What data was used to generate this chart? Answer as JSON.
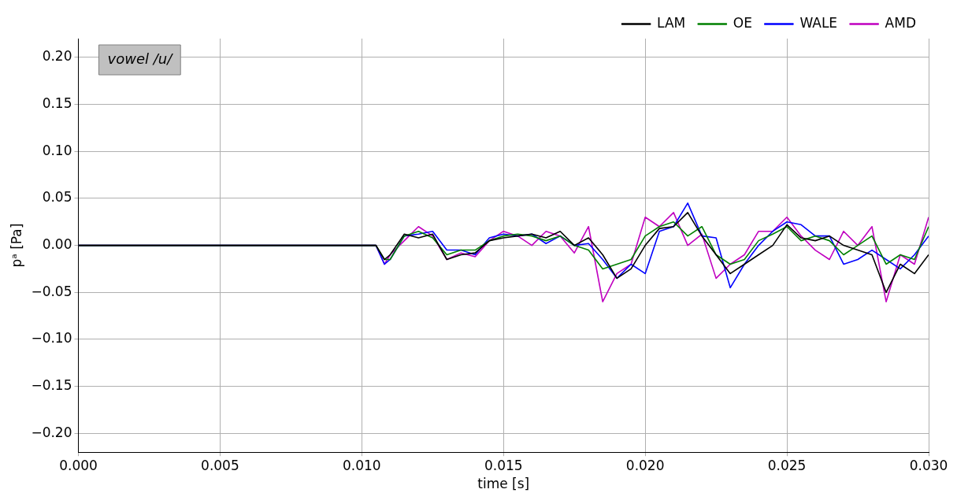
{
  "chart_data": {
    "type": "line",
    "xlabel": "time [s]",
    "ylabel": "pᵃ [Pa]",
    "annotations": [
      "vowel /u/"
    ],
    "legend": "top right",
    "grid": true,
    "marker": "none",
    "line_style": "solid",
    "x": [
      0,
      0.0105,
      0.0108,
      0.011,
      0.0115,
      0.012,
      0.0125,
      0.013,
      0.0135,
      0.014,
      0.0145,
      0.015,
      0.0155,
      0.016,
      0.0165,
      0.017,
      0.0175,
      0.018,
      0.0185,
      0.019,
      0.0195,
      0.02,
      0.0205,
      0.021,
      0.0215,
      0.022,
      0.0225,
      0.023,
      0.0235,
      0.024,
      0.0245,
      0.025,
      0.0255,
      0.026,
      0.0265,
      0.027,
      0.0275,
      0.028,
      0.0285,
      0.029,
      0.0295,
      0.03
    ],
    "xlim": [
      0,
      0.03
    ],
    "xticks": [
      {
        "value": 0,
        "label": "0.000"
      },
      {
        "value": 0.005,
        "label": "0.005"
      },
      {
        "value": 0.01,
        "label": "0.010"
      },
      {
        "value": 0.015,
        "label": "0.015"
      },
      {
        "value": 0.02,
        "label": "0.020"
      },
      {
        "value": 0.025,
        "label": "0.025"
      },
      {
        "value": 0.03,
        "label": "0.030"
      }
    ],
    "ylim": [
      -0.22,
      0.22
    ],
    "yticks": [
      {
        "value": -0.2,
        "label": "−0.20"
      },
      {
        "value": -0.15,
        "label": "−0.15"
      },
      {
        "value": -0.1,
        "label": "−0.10"
      },
      {
        "value": -0.05,
        "label": "−0.05"
      },
      {
        "value": 0,
        "label": "0.00"
      },
      {
        "value": 0.05,
        "label": "0.05"
      },
      {
        "value": 0.1,
        "label": "0.10"
      },
      {
        "value": 0.15,
        "label": "0.15"
      },
      {
        "value": 0.2,
        "label": "0.20"
      }
    ],
    "series": [
      {
        "name": "LAM",
        "color": "#000000",
        "values": [
          0,
          0,
          -0.015,
          -0.01,
          0.012,
          0.008,
          0.012,
          -0.015,
          -0.01,
          -0.008,
          0.005,
          0.008,
          0.01,
          0.012,
          0.008,
          0.015,
          0,
          0.008,
          -0.01,
          -0.035,
          -0.025,
          0,
          0.018,
          0.02,
          0.035,
          0.01,
          -0.01,
          -0.03,
          -0.02,
          -0.01,
          0,
          0.022,
          0.008,
          0.005,
          0.01,
          0,
          -0.005,
          -0.01,
          -0.05,
          -0.02,
          -0.03,
          -0.01
        ]
      },
      {
        "name": "OE",
        "color": "#008000",
        "values": [
          0,
          0,
          -0.015,
          -0.015,
          0.01,
          0.015,
          0.008,
          -0.01,
          -0.005,
          -0.005,
          0.005,
          0.01,
          0.012,
          0.01,
          0.005,
          0.01,
          0,
          -0.005,
          -0.025,
          -0.02,
          -0.015,
          0.01,
          0.02,
          0.025,
          0.01,
          0.02,
          -0.01,
          -0.02,
          -0.015,
          0.005,
          0.012,
          0.02,
          0.005,
          0.01,
          0.005,
          -0.01,
          0,
          0.01,
          -0.02,
          -0.01,
          -0.015,
          0.02
        ]
      },
      {
        "name": "WALE",
        "color": "#0000ff",
        "values": [
          0,
          0,
          -0.02,
          -0.015,
          0.01,
          0.012,
          0.015,
          -0.005,
          -0.005,
          -0.01,
          0.008,
          0.012,
          0.01,
          0.012,
          0.002,
          0.01,
          0,
          0.002,
          -0.015,
          -0.035,
          -0.02,
          -0.03,
          0.015,
          0.02,
          0.045,
          0.01,
          0.008,
          -0.045,
          -0.02,
          0,
          0.015,
          0.025,
          0.022,
          0.01,
          0.01,
          -0.02,
          -0.015,
          -0.005,
          -0.015,
          -0.025,
          -0.01,
          0.01
        ]
      },
      {
        "name": "AMD",
        "color": "#c000c0",
        "values": [
          0,
          0,
          -0.02,
          -0.01,
          0.005,
          0.02,
          0.01,
          -0.015,
          -0.008,
          -0.012,
          0.005,
          0.015,
          0.01,
          0,
          0.015,
          0.01,
          -0.008,
          0.02,
          -0.06,
          -0.03,
          -0.02,
          0.03,
          0.02,
          0.035,
          0,
          0.012,
          -0.035,
          -0.02,
          -0.01,
          0.015,
          0.015,
          0.03,
          0.01,
          -0.005,
          -0.015,
          0.015,
          0,
          0.02,
          -0.06,
          -0.01,
          -0.02,
          0.03
        ]
      }
    ]
  }
}
